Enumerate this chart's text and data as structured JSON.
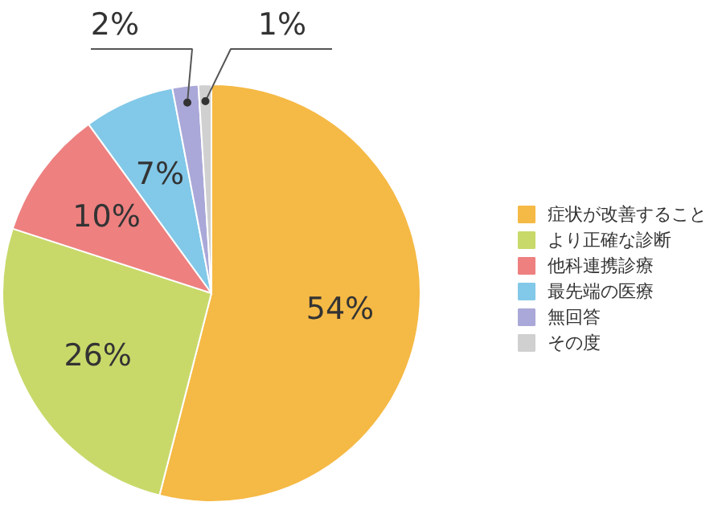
{
  "chart_data": {
    "type": "pie",
    "categories": [
      "症状が改善すること",
      "より正確な診断",
      "他科連携診療",
      "最先端の医療",
      "無回答",
      "その度"
    ],
    "values": [
      54,
      26,
      10,
      7,
      2,
      1
    ],
    "colors": [
      "#f5b945",
      "#c8d96a",
      "#ee8080",
      "#82c8e8",
      "#aaa8d8",
      "#d0d0d0"
    ],
    "value_labels": [
      "54%",
      "26%",
      "10%",
      "7%",
      "2%",
      "1%"
    ],
    "legend": "right"
  }
}
